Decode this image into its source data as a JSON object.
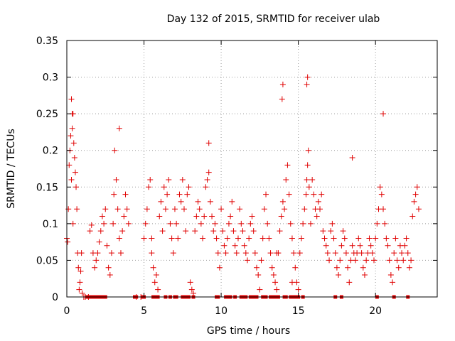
{
  "chart_data": {
    "type": "scatter",
    "title": "Day 132 of 2015, SRMTID for receiver ulab",
    "xlabel": "GPS time / hours",
    "ylabel": "SRMTID / TECUs",
    "xlim": [
      0,
      24
    ],
    "ylim": [
      0,
      0.35
    ],
    "x_ticks": [
      0,
      5,
      10,
      15,
      20
    ],
    "x_tick_labels": [
      "0",
      "5",
      "10",
      "15",
      "20"
    ],
    "y_ticks": [
      0,
      0.05,
      0.1,
      0.15,
      0.2,
      0.25,
      0.3,
      0.35
    ],
    "y_tick_labels": [
      "0",
      "0.05",
      "0.1",
      "0.15",
      "0.2",
      "0.25",
      "0.3",
      "0.35"
    ],
    "grid": true,
    "marker": "+",
    "series": [
      {
        "name": "SRMTID",
        "color": "#e00000",
        "x": [
          0.0,
          0.05,
          0.1,
          0.15,
          0.2,
          0.25,
          0.3,
          0.35,
          0.4,
          0.45,
          0.5,
          0.55,
          0.6,
          0.65,
          0.7,
          0.75,
          0.8,
          0.85,
          0.9,
          0.95,
          1.0,
          1.1,
          1.2,
          1.4,
          1.5,
          1.6,
          1.7,
          1.8,
          1.9,
          2.0,
          2.1,
          2.2,
          2.3,
          2.4,
          2.5,
          2.6,
          2.7,
          2.8,
          2.9,
          3.0,
          3.05,
          3.1,
          3.2,
          3.3,
          3.4,
          3.5,
          3.6,
          3.7,
          3.8,
          3.9,
          4.0,
          4.5,
          4.8,
          5.0,
          5.1,
          5.2,
          5.3,
          5.4,
          5.5,
          5.6,
          5.7,
          5.8,
          5.9,
          6.0,
          6.1,
          6.2,
          6.3,
          6.4,
          6.5,
          6.6,
          6.7,
          6.8,
          6.9,
          7.0,
          7.1,
          7.2,
          7.3,
          7.4,
          7.5,
          7.6,
          7.7,
          7.8,
          7.9,
          8.0,
          8.1,
          8.2,
          8.3,
          8.4,
          8.5,
          8.6,
          8.7,
          8.8,
          8.9,
          9.0,
          9.1,
          9.2,
          9.3,
          9.4,
          9.5,
          9.6,
          9.7,
          9.8,
          9.9,
          10.0,
          10.1,
          10.2,
          10.3,
          10.4,
          10.5,
          10.6,
          10.7,
          10.8,
          10.9,
          11.0,
          11.1,
          11.2,
          11.3,
          11.4,
          11.5,
          11.6,
          11.7,
          11.8,
          11.9,
          12.0,
          12.1,
          12.2,
          12.3,
          12.4,
          12.5,
          12.6,
          12.7,
          12.8,
          12.9,
          13.0,
          13.1,
          13.2,
          13.3,
          13.4,
          13.5,
          13.6,
          13.7,
          13.8,
          13.9,
          14.0,
          14.1,
          14.2,
          14.3,
          14.4,
          14.5,
          14.6,
          14.7,
          14.8,
          14.9,
          15.0,
          15.1,
          15.2,
          15.3,
          15.4,
          15.5,
          15.55,
          15.6,
          15.65,
          15.7,
          15.8,
          15.9,
          16.0,
          16.1,
          16.2,
          16.3,
          16.4,
          16.5,
          16.6,
          16.7,
          16.8,
          16.9,
          17.0,
          17.1,
          17.2,
          17.3,
          17.4,
          17.5,
          17.6,
          17.7,
          17.8,
          17.9,
          18.0,
          18.1,
          18.2,
          18.3,
          18.4,
          18.5,
          18.6,
          18.7,
          18.8,
          18.9,
          19.0,
          19.1,
          19.2,
          19.3,
          19.4,
          19.5,
          19.6,
          19.7,
          19.8,
          19.9,
          20.0,
          20.1,
          20.2,
          20.3,
          20.4,
          20.5,
          20.6,
          20.7,
          20.8,
          20.9,
          21.0,
          21.1,
          21.2,
          21.3,
          21.4,
          21.5,
          21.6,
          21.7,
          21.8,
          21.9,
          22.0,
          22.1,
          22.2,
          22.3,
          22.4,
          22.5,
          22.6,
          22.7,
          22.8,
          13.95,
          14.0,
          15.55,
          15.6,
          0.3,
          0.35,
          0.4,
          3.4,
          20.5,
          9.2,
          18.5,
          5.5,
          13.6,
          14.6
        ],
        "y": [
          0.08,
          0.075,
          0.12,
          0.18,
          0.2,
          0.22,
          0.16,
          0.23,
          0.25,
          0.21,
          0.19,
          0.17,
          0.15,
          0.12,
          0.06,
          0.04,
          0.01,
          0.02,
          0.035,
          0.06,
          0.005,
          0.0,
          0.0,
          0.0,
          0.09,
          0.098,
          0.06,
          0.04,
          0.05,
          0.06,
          0.075,
          0.09,
          0.11,
          0.1,
          0.12,
          0.07,
          0.04,
          0.03,
          0.06,
          0.1,
          0.14,
          0.2,
          0.16,
          0.12,
          0.08,
          0.06,
          0.09,
          0.11,
          0.14,
          0.12,
          0.1,
          0.0,
          0.0,
          0.08,
          0.1,
          0.12,
          0.15,
          0.16,
          0.06,
          0.04,
          0.02,
          0.03,
          0.01,
          0.11,
          0.13,
          0.09,
          0.15,
          0.12,
          0.14,
          0.16,
          0.1,
          0.08,
          0.06,
          0.12,
          0.1,
          0.08,
          0.14,
          0.13,
          0.16,
          0.12,
          0.09,
          0.14,
          0.15,
          0.02,
          0.01,
          0.005,
          0.09,
          0.11,
          0.13,
          0.12,
          0.1,
          0.08,
          0.11,
          0.15,
          0.16,
          0.17,
          0.13,
          0.11,
          0.09,
          0.1,
          0.08,
          0.06,
          0.04,
          0.12,
          0.09,
          0.07,
          0.06,
          0.08,
          0.1,
          0.11,
          0.13,
          0.09,
          0.07,
          0.06,
          0.08,
          0.12,
          0.1,
          0.09,
          0.07,
          0.06,
          0.05,
          0.08,
          0.1,
          0.11,
          0.09,
          0.06,
          0.04,
          0.03,
          0.01,
          0.05,
          0.08,
          0.12,
          0.14,
          0.1,
          0.08,
          0.06,
          0.04,
          0.03,
          0.02,
          0.01,
          0.06,
          0.09,
          0.11,
          0.13,
          0.12,
          0.16,
          0.18,
          0.14,
          0.1,
          0.08,
          0.06,
          0.04,
          0.02,
          0.01,
          0.06,
          0.08,
          0.1,
          0.12,
          0.14,
          0.16,
          0.18,
          0.2,
          0.15,
          0.1,
          0.16,
          0.14,
          0.12,
          0.11,
          0.13,
          0.12,
          0.14,
          0.09,
          0.08,
          0.07,
          0.06,
          0.05,
          0.09,
          0.1,
          0.08,
          0.06,
          0.04,
          0.03,
          0.05,
          0.07,
          0.09,
          0.08,
          0.06,
          0.04,
          0.02,
          0.05,
          0.07,
          0.06,
          0.05,
          0.06,
          0.08,
          0.07,
          0.06,
          0.04,
          0.03,
          0.05,
          0.06,
          0.08,
          0.07,
          0.06,
          0.05,
          0.08,
          0.1,
          0.12,
          0.15,
          0.14,
          0.12,
          0.1,
          0.08,
          0.07,
          0.05,
          0.03,
          0.02,
          0.06,
          0.08,
          0.05,
          0.04,
          0.07,
          0.06,
          0.05,
          0.07,
          0.08,
          0.06,
          0.04,
          0.05,
          0.11,
          0.13,
          0.14,
          0.15,
          0.12,
          0.27,
          0.29,
          0.29,
          0.3,
          0.27,
          0.25,
          0.1,
          0.23,
          0.25,
          0.21,
          0.19,
          0.08,
          0.06,
          0.02
        ],
        "zeros_x": [
          1.3,
          1.4,
          1.5,
          1.6,
          1.7,
          1.8,
          2.0,
          2.1,
          2.2,
          2.3,
          2.5,
          4.4,
          4.5,
          4.9,
          5.0,
          5.6,
          5.8,
          5.9,
          6.4,
          6.7,
          7.0,
          7.1,
          7.5,
          7.7,
          7.9,
          8.2,
          9.7,
          9.8,
          10.3,
          10.4,
          10.6,
          10.9,
          11.3,
          11.5,
          11.6,
          11.9,
          12.1,
          12.3,
          12.7,
          12.9,
          13.2,
          13.4,
          13.5,
          13.7,
          14.1,
          14.2,
          14.5,
          14.7,
          14.9,
          15.0,
          15.3,
          17.4,
          17.8,
          20.1,
          21.2,
          22.1
        ]
      }
    ]
  }
}
